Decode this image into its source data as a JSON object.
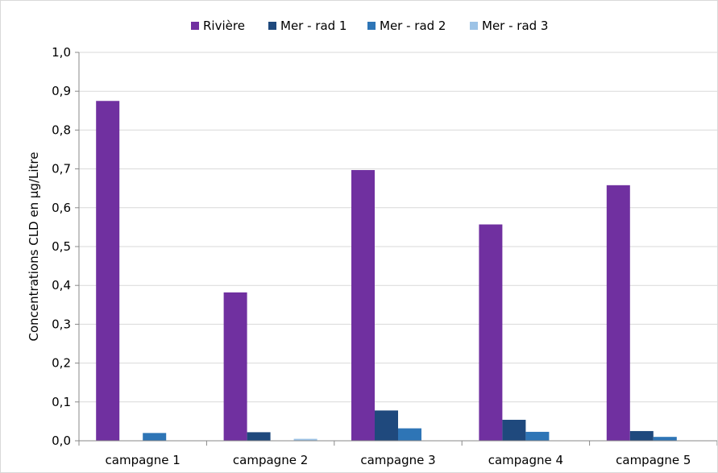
{
  "chart_data": {
    "type": "bar",
    "title": "",
    "xlabel": "",
    "ylabel": "Concentrations CLD en µg/Litre",
    "ylim": [
      0,
      1.0
    ],
    "yticks": [
      "0,0",
      "0,1",
      "0,2",
      "0,3",
      "0,4",
      "0,5",
      "0,6",
      "0,7",
      "0,8",
      "0,9",
      "1,0"
    ],
    "grid": true,
    "legend_position": "top",
    "categories": [
      "campagne 1",
      "campagne 2",
      "campagne 3",
      "campagne 4",
      "campagne 5"
    ],
    "series": [
      {
        "name": "Rivière",
        "color": "#7030a0",
        "values": [
          0.875,
          0.382,
          0.697,
          0.557,
          0.658
        ]
      },
      {
        "name": "Mer - rad 1",
        "color": "#1f497d",
        "values": [
          0,
          0.022,
          0.078,
          0.054,
          0.025
        ]
      },
      {
        "name": "Mer - rad 2",
        "color": "#2e75b6",
        "values": [
          0.02,
          0,
          0.032,
          0.023,
          0.01
        ]
      },
      {
        "name": "Mer - rad 3",
        "color": "#9dc3e6",
        "values": [
          0,
          0.005,
          0,
          0,
          0
        ]
      }
    ]
  }
}
